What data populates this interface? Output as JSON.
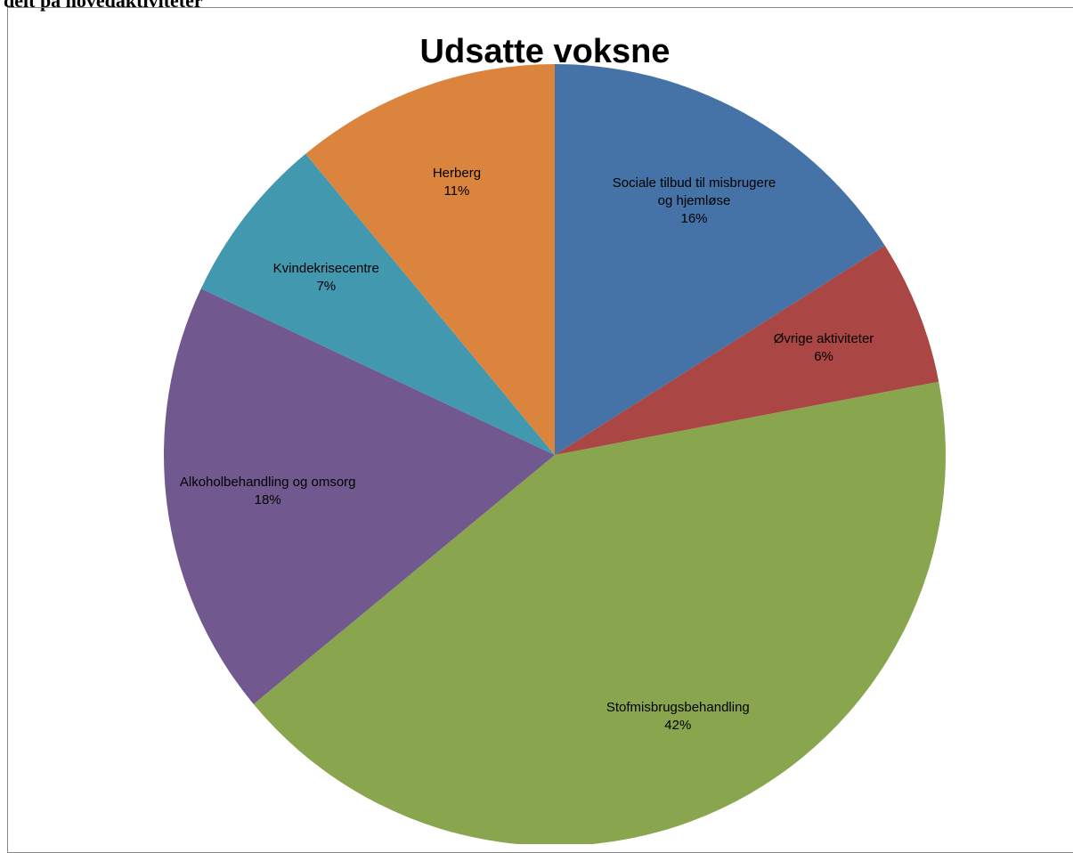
{
  "caption": "delt på hovedaktiviteter",
  "chart_data": {
    "type": "pie",
    "title": "Udsatte voksne",
    "categories": [
      "Sociale tilbud til misbrugere og hjemløse",
      "Øvrige aktiviteter",
      "Stofmisbrugsbehandling",
      "Alkoholbehandling og omsorg",
      "Kvindekrisecentre",
      "Herberg"
    ],
    "values": [
      16,
      6,
      42,
      18,
      7,
      11
    ],
    "value_labels": [
      "16%",
      "6%",
      "42%",
      "18%",
      "7%",
      "11%"
    ],
    "colors": [
      "#4572a7",
      "#aa4643",
      "#89a54e",
      "#71588f",
      "#4198af",
      "#db843d"
    ]
  }
}
